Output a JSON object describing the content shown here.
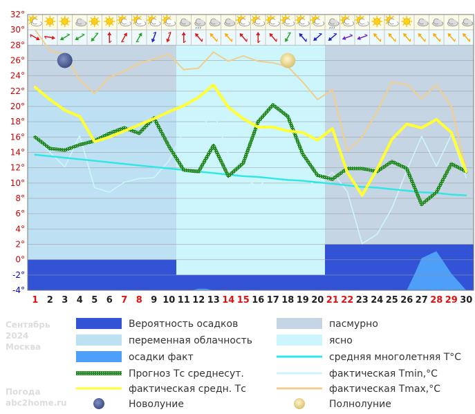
{
  "chart_data": {
    "type": "line",
    "title": "",
    "info": {
      "month": "Сентябрь",
      "year": "2024",
      "city": "Москва"
    },
    "source": {
      "line1": "Погода",
      "line2": "abc2home.ru"
    },
    "x": [
      1,
      2,
      3,
      4,
      5,
      6,
      7,
      8,
      9,
      10,
      11,
      12,
      13,
      14,
      15,
      16,
      17,
      18,
      19,
      20,
      21,
      22,
      23,
      24,
      25,
      26,
      27,
      28,
      29,
      30
    ],
    "x_labels": [
      "1",
      "2",
      "3",
      "4",
      "5",
      "6",
      "7",
      "8",
      "9",
      "10",
      "11",
      "12",
      "13",
      "14",
      "15",
      "16",
      "17",
      "18",
      "19",
      "20",
      "21",
      "22",
      "23",
      "24",
      "25",
      "26",
      "27",
      "28",
      "29",
      "30"
    ],
    "weekend_days": [
      1,
      7,
      8,
      14,
      15,
      21,
      22,
      28,
      29
    ],
    "ylim": [
      -4,
      32
    ],
    "yticks": [
      -4,
      -2,
      0,
      2,
      4,
      6,
      8,
      10,
      12,
      14,
      16,
      18,
      20,
      22,
      24,
      26,
      28,
      30,
      32
    ],
    "ytick_labels": [
      "-4°",
      "-2°",
      "0°",
      "2°",
      "4°",
      "6°",
      "8°",
      "10°",
      "12°",
      "14°",
      "16°",
      "18°",
      "20°",
      "22°",
      "24°",
      "26°",
      "28°",
      "30°",
      "32°"
    ],
    "grid": true,
    "cloud_periods": [
      {
        "from": 1,
        "to": 10,
        "sky": "переменная облачность",
        "color": "#bde0f2",
        "level": 22
      },
      {
        "from": 11,
        "to": 20,
        "sky": "ясно",
        "color": "#ccf6fc",
        "level": 29
      },
      {
        "from": 21,
        "to": 30,
        "sky": "пасмурно",
        "color": "#c6d5e3",
        "level": 29
      }
    ],
    "precip_probability": [
      {
        "from": 1,
        "to": 10,
        "value": 0
      },
      {
        "from": 11,
        "to": 20,
        "value": -2
      },
      {
        "from": 21,
        "to": 30,
        "value": 2
      }
    ],
    "precip_fact": [
      {
        "x": 11.5,
        "y": -4
      },
      {
        "x": 12,
        "y": -3.8
      },
      {
        "x": 12.5,
        "y": -3.8
      },
      {
        "x": 13,
        "y": -4
      },
      {
        "x": 26,
        "y": -4
      },
      {
        "x": 26.5,
        "y": -2
      },
      {
        "x": 27,
        "y": 0.2
      },
      {
        "x": 28,
        "y": 1.1
      },
      {
        "x": 29,
        "y": -1.8
      },
      {
        "x": 30,
        "y": -4
      }
    ],
    "series": [
      {
        "name": "Прогноз Тс среднесут.",
        "color": "#1e8c1e",
        "values": [
          16.0,
          14.5,
          14.3,
          15.0,
          15.5,
          16.5,
          17.2,
          16.5,
          18.5,
          14.8,
          11.7,
          11.5,
          14.9,
          10.9,
          12.6,
          18.0,
          20.2,
          18.7,
          13.8,
          11.0,
          10.5,
          11.9,
          11.9,
          11.5,
          12.8,
          11.9,
          7.2,
          8.8,
          12.5,
          11.5
        ]
      },
      {
        "name": "фактическая средн. Тс",
        "color": "#ffff33",
        "values": [
          22.5,
          20.9,
          19.5,
          18.7,
          15.4,
          16.0,
          16.8,
          17.6,
          18.4,
          19.3,
          20.1,
          21.2,
          22.8,
          19.9,
          18.4,
          17.3,
          17.3,
          16.8,
          16.6,
          15.6,
          17.1,
          11.4,
          8.4,
          11.8,
          15.7,
          17.7,
          17.2,
          18.3,
          16.6,
          11.5
        ]
      },
      {
        "name": "фактическая Tmin,°C",
        "color": "#cdf6fc",
        "values": [
          16.0,
          14.0,
          12.1,
          16.2,
          9.4,
          8.8,
          10.1,
          10.6,
          10.7,
          12.9,
          16.8,
          16.7,
          19.3,
          13.8,
          10.7,
          9.5,
          11.2,
          10.1,
          10.7,
          9.6,
          11.4,
          8.9,
          2.1,
          3.3,
          6.7,
          11.6,
          16.1,
          12.2,
          16.3,
          10.7
        ]
      },
      {
        "name": "фактическая Tmax,°C",
        "color": "#f2cd8c",
        "values": [
          30.0,
          27.3,
          26.8,
          23.4,
          21.7,
          23.8,
          24.6,
          25.6,
          26.2,
          26.8,
          24.8,
          25.0,
          27.1,
          25.9,
          26.6,
          25.9,
          25.7,
          25.2,
          23.2,
          20.9,
          22.2,
          14.2,
          16.0,
          19.3,
          23.2,
          22.9,
          21.0,
          22.8,
          20.0,
          11.6
        ]
      },
      {
        "name": "средняя многолетняя Т°С",
        "color": "#33e6e6",
        "values": [
          13.7,
          13.5,
          13.3,
          13.1,
          12.9,
          12.7,
          12.5,
          12.3,
          12.1,
          11.9,
          11.7,
          11.5,
          11.3,
          11.1,
          10.9,
          10.8,
          10.6,
          10.4,
          10.3,
          10.1,
          9.9,
          9.7,
          9.5,
          9.4,
          9.2,
          9.0,
          8.8,
          8.7,
          8.5,
          8.4
        ]
      }
    ],
    "moon_phases": [
      {
        "name": "Новолуние",
        "day": 3,
        "y": 26
      },
      {
        "name": "Полнолуние",
        "day": 18,
        "y": 26
      }
    ],
    "weather_icons": [
      "partly-cloudy",
      "sunny",
      "sunny",
      "cloudy",
      "sunny",
      "sunny",
      "partly-cloudy",
      "partly-cloudy",
      "partly-cloudy",
      "partly-cloudy",
      "cloudy",
      "cloudy-rain",
      "cloudy",
      "cloudy",
      "partly-cloudy",
      "partly-cloudy",
      "partly-cloudy",
      "partly-cloudy",
      "partly-cloudy",
      "partly-cloudy",
      "cloudy-rain",
      "partly-cloudy",
      "partly-cloudy",
      "sunny",
      "partly-cloudy",
      "sunny",
      "cloudy",
      "cloudy",
      "cloudy",
      "cloudy"
    ],
    "wind_dirs": [
      120,
      100,
      240,
      240,
      220,
      0,
      30,
      30,
      200,
      200,
      0,
      320,
      320,
      320,
      320,
      0,
      320,
      210,
      320,
      230,
      230,
      250,
      250,
      320,
      320,
      320,
      320,
      320,
      320,
      320
    ],
    "wind_colors": [
      "#e01a1a",
      "#e01a1a",
      "#2aa02a",
      "#2aa02a",
      "#2aa02a",
      "#e01a1a",
      "#e01a1a",
      "#2aa02a",
      "#2020c0",
      "#e01a1a",
      "#e01a1a",
      "#e01a1a",
      "#ffaa00",
      "#ffaa00",
      "#e01a1a",
      "#e01a1a",
      "#e01a1a",
      "#2aa02a",
      "#2020c0",
      "#2020c0",
      "#2020c0",
      "#6a2ac0",
      "#6a2ac0",
      "#ffaa00",
      "#ffaa00",
      "#ffaa00",
      "#ffaa00",
      "#ffaa00",
      "#ffaa00",
      "#ffaa00"
    ],
    "legend": [
      {
        "label": "Вероятность осадков",
        "swatch": "block",
        "color": "#3253d6"
      },
      {
        "label": "пасмурно",
        "swatch": "block",
        "color": "#c6d5e3"
      },
      {
        "label": "переменная облачность",
        "swatch": "block",
        "color": "#bde0f2"
      },
      {
        "label": "ясно",
        "swatch": "block",
        "color": "#ccf6fc"
      },
      {
        "label": "осадки факт",
        "swatch": "block",
        "color": "#4d9ff7"
      },
      {
        "label": "средняя многолетняя T°C",
        "swatch": "line",
        "color": "#33e6e6"
      },
      {
        "label": "Прогноз Тс среднесут.",
        "swatch": "pattern",
        "color": "#1e8c1e"
      },
      {
        "label": "фактическая Tmin,°C",
        "swatch": "line",
        "color": "#cdf6fc"
      },
      {
        "label": "фактическая средн. Тс",
        "swatch": "line",
        "color": "#ffff33"
      },
      {
        "label": "фактическая Tmax,°C",
        "swatch": "line",
        "color": "#f2cd8c"
      },
      {
        "label": "Новолуние",
        "swatch": "new-moon",
        "color": "#5a6aa0"
      },
      {
        "label": "Полнолуние",
        "swatch": "full-moon",
        "color": "#f2e6a8"
      }
    ]
  }
}
